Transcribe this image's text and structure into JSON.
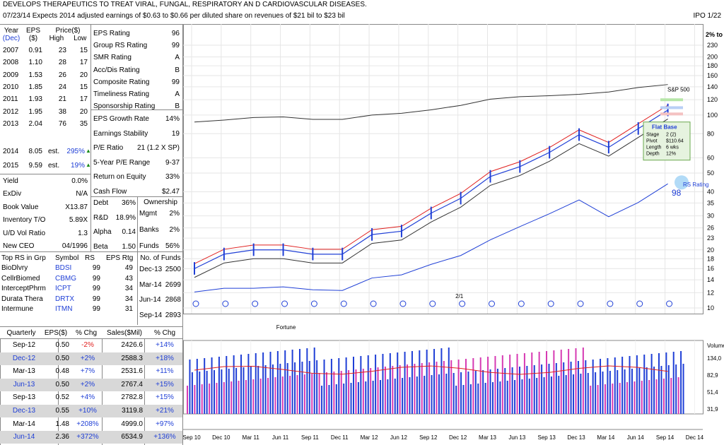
{
  "header": {
    "line1": "DEVELOPS THERAPEUTICS TO TREAT VIRAL, FUNGAL, RESPIRATORY AN D CARDIOVASCULAR DISEASES.",
    "line2": "07/23/14  Expects 2014 adjusted earnings of $0.63 to $0.66 per diluted share on revenues of $21 bil to $23 bil",
    "ipo": "IPO 1/22"
  },
  "annual": {
    "col_year": "Year",
    "col_year2": "(Dec)",
    "col_eps": "EPS",
    "col_eps2": "($)",
    "col_price": "Price($)",
    "col_high": "High",
    "col_low": "Low",
    "rows": [
      {
        "year": "2007",
        "eps": "0.91",
        "high": "23",
        "low": "15"
      },
      {
        "year": "2008",
        "eps": "1.10",
        "high": "28",
        "low": "17"
      },
      {
        "year": "2009",
        "eps": "1.53",
        "high": "26",
        "low": "20"
      },
      {
        "year": "2010",
        "eps": "1.85",
        "high": "24",
        "low": "15"
      },
      {
        "year": "2011",
        "eps": "1.93",
        "high": "21",
        "low": "17"
      },
      {
        "year": "2012",
        "eps": "1.95",
        "high": "38",
        "low": "20"
      },
      {
        "year": "2013",
        "eps": "2.04",
        "high": "76",
        "low": "35"
      }
    ],
    "est_rows": [
      {
        "year": "2014",
        "eps": "8.05",
        "est": "est.",
        "pct": "295%"
      },
      {
        "year": "2015",
        "eps": "9.59",
        "est": "est.",
        "pct": "19%"
      }
    ]
  },
  "ratings": [
    {
      "label": "EPS Rating",
      "value": "96"
    },
    {
      "label": "Group RS Rating",
      "value": "99"
    },
    {
      "label": "SMR Rating",
      "value": "A"
    },
    {
      "label": "Acc/Dis Rating",
      "value": "B"
    },
    {
      "label": "Composite Rating",
      "value": "99"
    },
    {
      "label": "Timeliness Rating",
      "value": "A"
    },
    {
      "label": "Sponsorship Rating",
      "value": "B"
    }
  ],
  "growth": [
    {
      "label": "EPS Growth Rate",
      "value": "14%"
    },
    {
      "label": "Earnings Stability",
      "value": "19"
    },
    {
      "label": "P/E Ratio",
      "value": "21 (1.2 X SP)"
    },
    {
      "label": "5-Year P/E Range",
      "value": "9-37"
    },
    {
      "label": "Return on Equity",
      "value": "33%"
    },
    {
      "label": "Cash Flow",
      "value": "$2.47"
    }
  ],
  "misc": [
    {
      "label": "Yield",
      "value": "0.0%"
    },
    {
      "label": "ExDiv",
      "value": "N/A"
    },
    {
      "label": "Book Value",
      "value": "X13.87"
    },
    {
      "label": "Inventory T/O",
      "value": "5.89X"
    },
    {
      "label": "U/D Vol Ratio",
      "value": "1.3"
    },
    {
      "label": "New CEO",
      "value": "04/1996"
    }
  ],
  "debt": [
    {
      "label": "Debt",
      "value": "36%"
    },
    {
      "label": "R&D",
      "value": "18.9%"
    },
    {
      "label": "Alpha",
      "value": "0.14"
    },
    {
      "label": "Beta",
      "value": "1.50"
    }
  ],
  "ownership": {
    "title": "Ownership",
    "rows": [
      {
        "label": "Mgmt",
        "value": "2%"
      },
      {
        "label": "Banks",
        "value": "2%"
      },
      {
        "label": "Funds",
        "value": "56%"
      }
    ]
  },
  "funds": {
    "title": "No. of Funds",
    "rows": [
      {
        "label": "Dec-13",
        "value": "2500"
      },
      {
        "label": "Mar-14",
        "value": "2699"
      },
      {
        "label": "Jun-14",
        "value": "2868"
      },
      {
        "label": "Sep-14",
        "value": "2893"
      }
    ]
  },
  "top_rs": {
    "headers": [
      "Top RS in Grp",
      "Symbol",
      "RS",
      "EPS Rtg"
    ],
    "rows": [
      {
        "name": "BioDlvry",
        "symbol": "BDSI",
        "rs": "99",
        "eps": "49"
      },
      {
        "name": "CellrBiomed",
        "symbol": "CBMG",
        "rs": "99",
        "eps": "43"
      },
      {
        "name": "InterceptPhrm",
        "symbol": "ICPT",
        "rs": "99",
        "eps": "34"
      },
      {
        "name": "Durata Thera",
        "symbol": "DRTX",
        "rs": "99",
        "eps": "34"
      },
      {
        "name": "Intermune",
        "symbol": "ITMN",
        "rs": "99",
        "eps": "31"
      }
    ]
  },
  "quarterly": {
    "headers": [
      "Quarterly",
      "EPS($)",
      "% Chg",
      "Sales($Mil)",
      "% Chg"
    ],
    "rows": [
      {
        "q": "Sep-12",
        "eps": "0.50",
        "chg": "-2%",
        "sales": "2426.6",
        "schg": "+14%"
      },
      {
        "q": "Dec-12",
        "eps": "0.50",
        "chg": "+2%",
        "sales": "2588.3",
        "schg": "+18%"
      },
      {
        "q": "Mar-13",
        "eps": "0.48",
        "chg": "+7%",
        "sales": "2531.6",
        "schg": "+11%"
      },
      {
        "q": "Jun-13",
        "eps": "0.50",
        "chg": "+2%",
        "sales": "2767.4",
        "schg": "+15%"
      },
      {
        "q": "Sep-13",
        "eps": "0.52",
        "chg": "+4%",
        "sales": "2782.8",
        "schg": "+15%"
      },
      {
        "q": "Dec-13",
        "eps": "0.55",
        "chg": "+10%",
        "sales": "3119.8",
        "schg": "+21%"
      },
      {
        "q": "Mar-14",
        "eps": "1.48",
        "chg": "+208%",
        "sales": "4999.0",
        "schg": "+97%"
      },
      {
        "q": "Jun-14",
        "eps": "2.36",
        "chg": "+372%",
        "sales": "6534.9",
        "schg": "+136%"
      }
    ]
  },
  "chart_data": {
    "type": "line",
    "price_axis": {
      "scale": "log",
      "ticks": [
        "230",
        "200",
        "180",
        "160",
        "140",
        "120",
        "100",
        "80",
        "60",
        "50",
        "40",
        "35",
        "30",
        "26",
        "23",
        "20",
        "18",
        "16",
        "14",
        "12",
        "10"
      ],
      "tick_values": [
        230,
        200,
        180,
        160,
        140,
        120,
        100,
        80,
        60,
        50,
        40,
        35,
        30,
        26,
        23,
        20,
        18,
        16,
        14,
        12,
        10
      ],
      "label": "2% to"
    },
    "x_labels": [
      "Sep 10",
      "Dec 10",
      "Mar 11",
      "Jun 11",
      "Sep 11",
      "Dec 11",
      "Mar 12",
      "Jun 12",
      "Sep 12",
      "Dec 12",
      "Mar 13",
      "Jun 13",
      "Sep 13",
      "Dec 13",
      "Mar 14",
      "Jun 14",
      "Sep 14",
      "Dec 14"
    ],
    "price_series": {
      "name": "",
      "x": [
        "Sep 10",
        "Dec 10",
        "Mar 11",
        "Jun 11",
        "Sep 11",
        "Dec 11",
        "Mar 12",
        "Jun 12",
        "Sep 12",
        "Dec 12",
        "Mar 13",
        "Jun 13",
        "Sep 13",
        "Dec 13",
        "Mar 14",
        "Jun 14",
        "Sep 14"
      ],
      "values": [
        16,
        19,
        20,
        20,
        19,
        19,
        24,
        25,
        31,
        37,
        48,
        54,
        64,
        79,
        68,
        85,
        106
      ]
    },
    "sp500": {
      "name": "S&P 500",
      "values": [
        100,
        103,
        107,
        108,
        104,
        104,
        111,
        114,
        120,
        128,
        140,
        145,
        147,
        150,
        155,
        165,
        172
      ]
    },
    "rs_line": {
      "name": "RS Rating",
      "values": [
        11,
        11.5,
        11.5,
        11.7,
        11.3,
        11.2,
        13,
        13.5,
        15.3,
        17,
        20.5,
        24,
        28,
        33,
        27,
        32,
        40
      ]
    },
    "rs_rating": "98",
    "flat_base": {
      "title": "Flat Base",
      "rows": [
        {
          "label": "Stage",
          "value": "2 (2)"
        },
        {
          "label": "Pivot",
          "value": "$110.64"
        },
        {
          "label": "Length",
          "value": "6 wks"
        },
        {
          "label": "Depth",
          "value": "12%"
        }
      ]
    },
    "annotations": {
      "split": "2/1",
      "news": "Fortune"
    },
    "volume": {
      "label": "Volume",
      "ticks": [
        "134,0",
        "82,9",
        "51,4",
        "31,9"
      ]
    }
  }
}
